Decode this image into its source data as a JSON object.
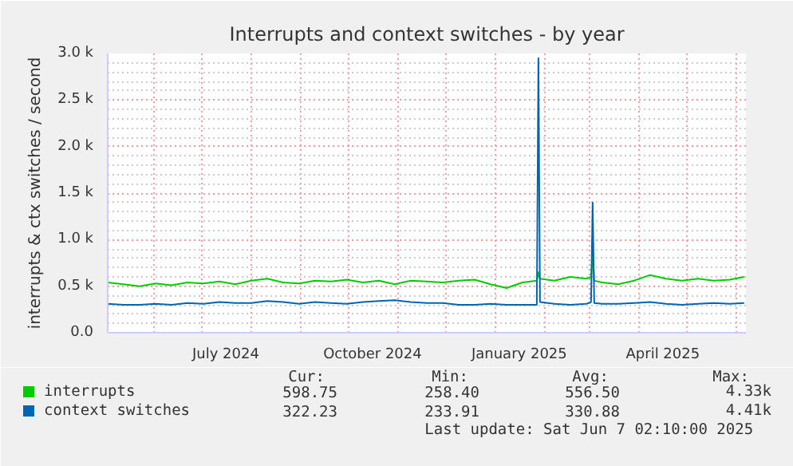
{
  "chart_data": {
    "type": "line",
    "title": "Interrupts and context switches - by year",
    "ylabel": "interrupts & ctx switches / second",
    "xlim": [
      "2024-05-03",
      "2025-06-07T02:10"
    ],
    "xticks": [
      {
        "value": "2024-07-16",
        "label": "July 2024"
      },
      {
        "value": "2024-10-16",
        "label": "October 2024"
      },
      {
        "value": "2025-01-16",
        "label": "January 2025"
      },
      {
        "value": "2025-04-16",
        "label": "April 2025"
      }
    ],
    "ylim": [
      0,
      3000
    ],
    "yticks": [
      {
        "value": 0,
        "label": "0.0"
      },
      {
        "value": 500,
        "label": "0.5 k"
      },
      {
        "value": 1000,
        "label": "1.0 k"
      },
      {
        "value": 1500,
        "label": "1.5 k"
      },
      {
        "value": 2000,
        "label": "2.0 k"
      },
      {
        "value": 2500,
        "label": "2.5 k"
      },
      {
        "value": 3000,
        "label": "3.0 k"
      }
    ],
    "x": [
      "2024-05-03",
      "2024-05-13",
      "2024-05-23",
      "2024-06-02",
      "2024-06-12",
      "2024-06-22",
      "2024-07-02",
      "2024-07-12",
      "2024-07-22",
      "2024-08-01",
      "2024-08-11",
      "2024-08-21",
      "2024-08-31",
      "2024-09-10",
      "2024-09-20",
      "2024-09-30",
      "2024-10-10",
      "2024-10-20",
      "2024-10-30",
      "2024-11-09",
      "2024-11-19",
      "2024-11-29",
      "2024-12-09",
      "2024-12-19",
      "2024-12-29",
      "2025-01-08",
      "2025-01-18",
      "2025-01-27",
      "2025-01-28",
      "2025-01-29",
      "2025-02-07",
      "2025-02-17",
      "2025-02-27",
      "2025-03-02",
      "2025-03-03",
      "2025-03-04",
      "2025-03-09",
      "2025-03-19",
      "2025-03-29",
      "2025-04-08",
      "2025-04-18",
      "2025-04-28",
      "2025-05-08",
      "2025-05-18",
      "2025-05-28",
      "2025-06-06"
    ],
    "series": [
      {
        "name": "interrupts",
        "color": "#00cc00",
        "values": [
          540,
          520,
          500,
          530,
          510,
          540,
          530,
          550,
          520,
          560,
          580,
          540,
          530,
          560,
          550,
          570,
          540,
          560,
          520,
          560,
          550,
          540,
          560,
          570,
          520,
          480,
          540,
          560,
          650,
          580,
          560,
          600,
          580,
          600,
          850,
          560,
          540,
          520,
          560,
          620,
          580,
          560,
          580,
          560,
          570,
          600
        ]
      },
      {
        "name": "context switches",
        "color": "#0066b3",
        "values": [
          310,
          300,
          300,
          310,
          300,
          320,
          310,
          330,
          320,
          320,
          340,
          330,
          310,
          330,
          320,
          310,
          330,
          340,
          350,
          330,
          320,
          320,
          300,
          300,
          310,
          300,
          300,
          300,
          2950,
          330,
          310,
          300,
          310,
          330,
          1400,
          320,
          310,
          310,
          320,
          330,
          310,
          300,
          310,
          320,
          310,
          320
        ]
      }
    ],
    "grid": true,
    "legend": "bottom",
    "annotations": [
      "Cur:",
      "Min:",
      "Avg:",
      "Max:",
      "598.75",
      "258.40",
      "556.50",
      "4.33k",
      "322.23",
      "233.91",
      "330.88",
      "4.41k",
      "Last update:  Sat Jun  7 02:10:00 2025"
    ]
  }
}
